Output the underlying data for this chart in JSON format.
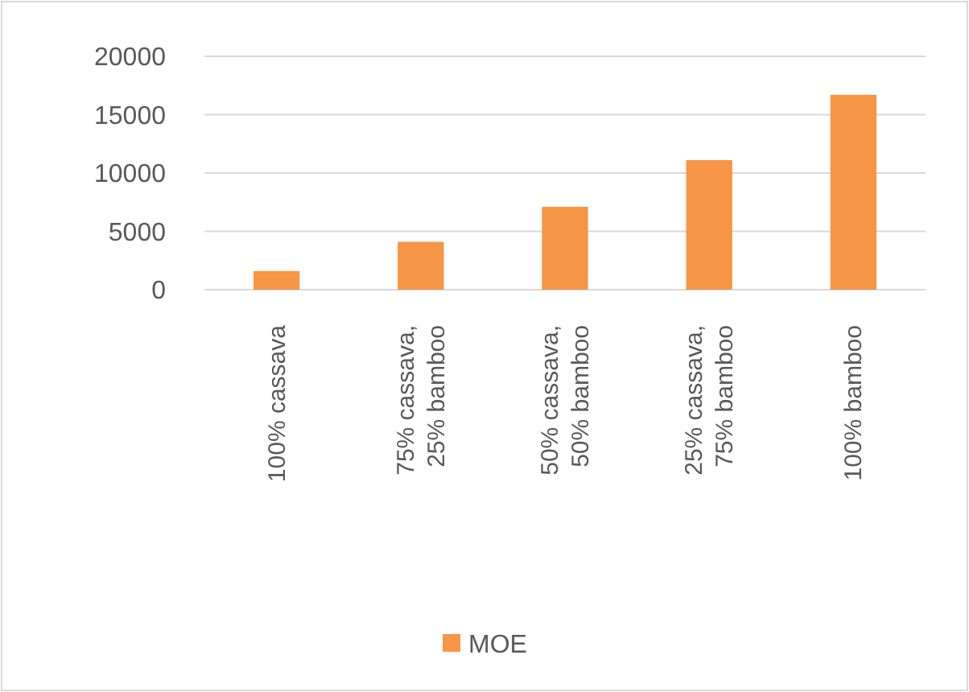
{
  "chart_data": {
    "type": "bar",
    "categories": [
      "100% cassava",
      "75% cassava, 25% bamboo",
      "50% cassava, 50% bamboo",
      "25% cassava, 75% bamboo",
      "100% bamboo"
    ],
    "series": [
      {
        "name": "MOE",
        "color": "#f79646",
        "values": [
          1600,
          4100,
          7100,
          11100,
          16700
        ]
      }
    ],
    "ylim": [
      0,
      20000
    ],
    "yticks": [
      0,
      5000,
      10000,
      15000,
      20000
    ],
    "grid": "y",
    "legend": "bottom"
  }
}
